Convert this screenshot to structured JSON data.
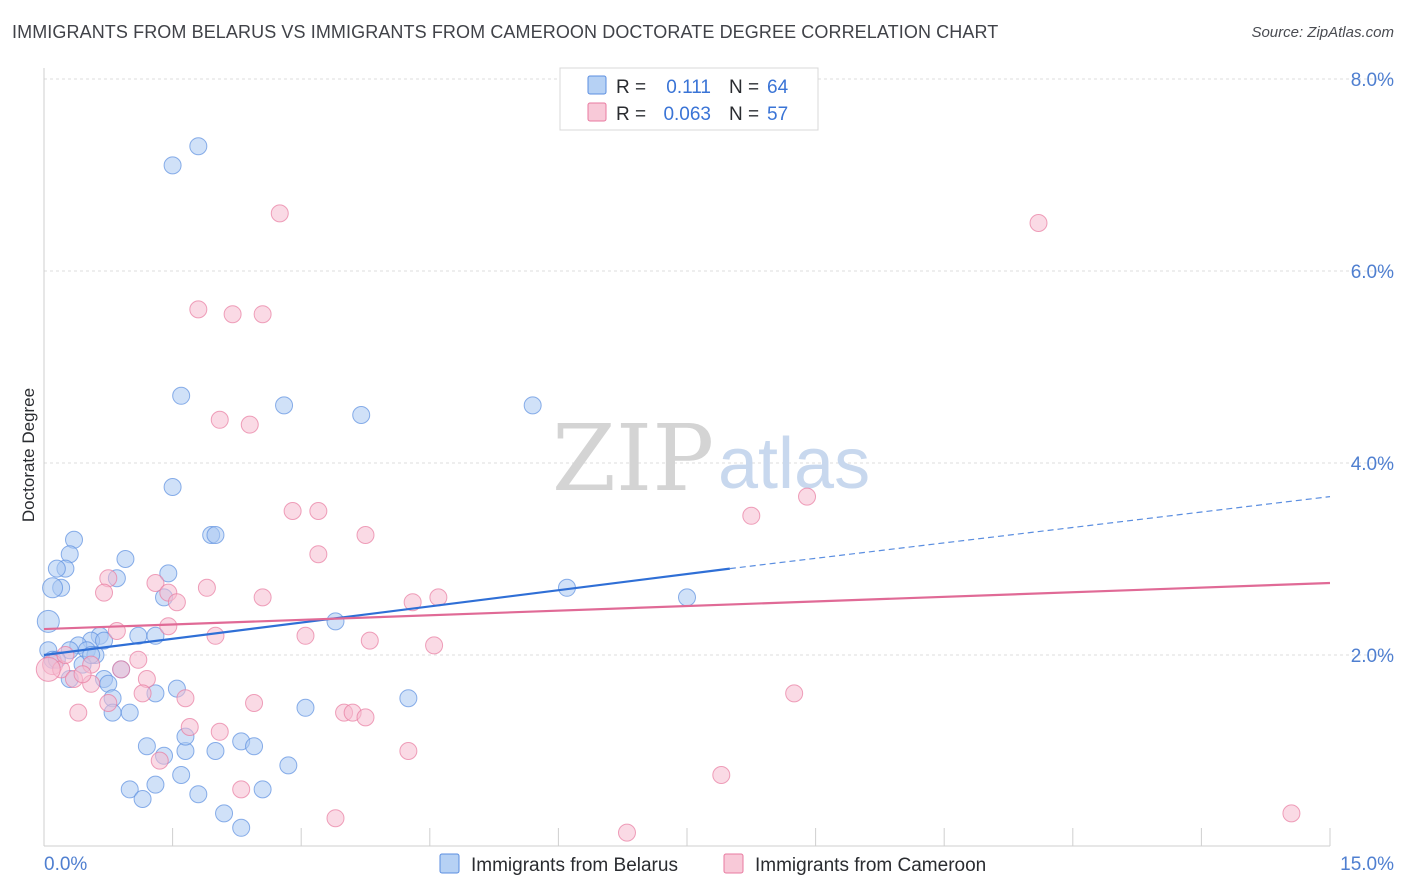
{
  "header": {
    "title": "IMMIGRANTS FROM BELARUS VS IMMIGRANTS FROM CAMEROON DOCTORATE DEGREE CORRELATION CHART",
    "source": "Source: ZipAtlas.com"
  },
  "watermark": {
    "zip": "ZIP",
    "atlas": "atlas"
  },
  "legend": {
    "rows": [
      {
        "r_label": "R =",
        "r_value": "0.111",
        "n_label": "N =",
        "n_value": "64",
        "color": "#9ec1f0"
      },
      {
        "r_label": "R =",
        "r_value": "0.063",
        "n_label": "N =",
        "n_value": "57",
        "color": "#f6b7cb"
      }
    ]
  },
  "chart_data": {
    "type": "scatter",
    "title": "IMMIGRANTS FROM BELARUS VS IMMIGRANTS FROM CAMEROON DOCTORATE DEGREE CORRELATION CHART",
    "xlabel": "",
    "ylabel": "Doctorate Degree",
    "xlim": [
      0,
      15
    ],
    "ylim": [
      0,
      8
    ],
    "x_tick_labels": [
      "0.0%",
      "15.0%"
    ],
    "y_ticks": [
      2,
      4,
      6,
      8
    ],
    "y_tick_labels": [
      "2.0%",
      "4.0%",
      "6.0%",
      "8.0%"
    ],
    "series": [
      {
        "name": "Immigrants from Belarus",
        "color": "#5b8ee0",
        "fill": "#a9c8f2",
        "trend": {
          "x0": 0,
          "y0": 2.0,
          "x1": 8.0,
          "y1": 2.9,
          "dash_x1": 15,
          "dash_y1": 3.65
        },
        "points": [
          [
            1.5,
            7.1
          ],
          [
            1.8,
            7.3
          ],
          [
            1.6,
            4.7
          ],
          [
            2.8,
            4.6
          ],
          [
            3.7,
            4.5
          ],
          [
            5.7,
            4.6
          ],
          [
            1.5,
            3.75
          ],
          [
            1.95,
            3.25
          ],
          [
            2.0,
            3.25
          ],
          [
            0.35,
            3.2
          ],
          [
            0.3,
            3.05
          ],
          [
            0.95,
            3.0
          ],
          [
            0.25,
            2.9
          ],
          [
            0.15,
            2.9
          ],
          [
            1.45,
            2.85
          ],
          [
            0.85,
            2.8
          ],
          [
            0.2,
            2.7
          ],
          [
            0.1,
            2.7
          ],
          [
            1.4,
            2.6
          ],
          [
            6.1,
            2.7
          ],
          [
            7.5,
            2.6
          ],
          [
            0.05,
            2.35
          ],
          [
            3.4,
            2.35
          ],
          [
            1.1,
            2.2
          ],
          [
            1.3,
            2.2
          ],
          [
            0.65,
            2.2
          ],
          [
            0.55,
            2.15
          ],
          [
            0.4,
            2.1
          ],
          [
            0.5,
            2.05
          ],
          [
            0.6,
            2.0
          ],
          [
            0.05,
            2.05
          ],
          [
            0.1,
            1.95
          ],
          [
            0.45,
            1.9
          ],
          [
            0.9,
            1.85
          ],
          [
            0.3,
            1.75
          ],
          [
            0.7,
            1.75
          ],
          [
            0.75,
            1.7
          ],
          [
            1.55,
            1.65
          ],
          [
            1.3,
            1.6
          ],
          [
            0.8,
            1.55
          ],
          [
            4.25,
            1.55
          ],
          [
            3.05,
            1.45
          ],
          [
            0.8,
            1.4
          ],
          [
            1.0,
            1.4
          ],
          [
            2.3,
            1.1
          ],
          [
            2.45,
            1.05
          ],
          [
            1.2,
            1.05
          ],
          [
            2.0,
            1.0
          ],
          [
            1.65,
            1.0
          ],
          [
            1.4,
            0.95
          ],
          [
            1.65,
            1.15
          ],
          [
            2.85,
            0.85
          ],
          [
            1.6,
            0.75
          ],
          [
            1.3,
            0.65
          ],
          [
            1.0,
            0.6
          ],
          [
            2.55,
            0.6
          ],
          [
            1.15,
            0.5
          ],
          [
            1.8,
            0.55
          ],
          [
            2.1,
            0.35
          ],
          [
            2.3,
            0.2
          ],
          [
            0.55,
            2.0
          ],
          [
            0.3,
            2.05
          ],
          [
            0.7,
            2.15
          ],
          [
            0.15,
            1.95
          ]
        ]
      },
      {
        "name": "Immigrants from Cameroon",
        "color": "#e87aa0",
        "fill": "#f6bccf",
        "trend": {
          "x0": 0,
          "y0": 2.27,
          "x1": 15,
          "y1": 2.75
        },
        "points": [
          [
            2.75,
            6.6
          ],
          [
            11.6,
            6.5
          ],
          [
            1.8,
            5.6
          ],
          [
            2.2,
            5.55
          ],
          [
            2.55,
            5.55
          ],
          [
            2.05,
            4.45
          ],
          [
            2.4,
            4.4
          ],
          [
            8.9,
            3.65
          ],
          [
            8.25,
            3.45
          ],
          [
            2.9,
            3.5
          ],
          [
            3.2,
            3.5
          ],
          [
            3.75,
            3.25
          ],
          [
            3.2,
            3.05
          ],
          [
            0.75,
            2.8
          ],
          [
            1.3,
            2.75
          ],
          [
            1.9,
            2.7
          ],
          [
            0.7,
            2.65
          ],
          [
            1.45,
            2.65
          ],
          [
            4.6,
            2.6
          ],
          [
            2.55,
            2.6
          ],
          [
            1.55,
            2.55
          ],
          [
            4.3,
            2.55
          ],
          [
            1.45,
            2.3
          ],
          [
            0.85,
            2.25
          ],
          [
            2.0,
            2.2
          ],
          [
            3.05,
            2.2
          ],
          [
            3.8,
            2.15
          ],
          [
            4.55,
            2.1
          ],
          [
            1.1,
            1.95
          ],
          [
            0.1,
            1.9
          ],
          [
            0.2,
            1.85
          ],
          [
            0.55,
            1.9
          ],
          [
            0.9,
            1.85
          ],
          [
            0.05,
            1.85
          ],
          [
            0.35,
            1.75
          ],
          [
            0.55,
            1.7
          ],
          [
            1.2,
            1.75
          ],
          [
            1.15,
            1.6
          ],
          [
            1.65,
            1.55
          ],
          [
            8.75,
            1.6
          ],
          [
            0.75,
            1.5
          ],
          [
            2.45,
            1.5
          ],
          [
            0.4,
            1.4
          ],
          [
            3.5,
            1.4
          ],
          [
            3.6,
            1.4
          ],
          [
            3.75,
            1.35
          ],
          [
            1.7,
            1.25
          ],
          [
            2.05,
            1.2
          ],
          [
            4.25,
            1.0
          ],
          [
            1.35,
            0.9
          ],
          [
            7.9,
            0.75
          ],
          [
            2.3,
            0.6
          ],
          [
            3.4,
            0.3
          ],
          [
            6.8,
            0.15
          ],
          [
            14.55,
            0.35
          ],
          [
            0.25,
            2.0
          ],
          [
            0.45,
            1.8
          ]
        ]
      }
    ],
    "legend_position": "top-center"
  }
}
